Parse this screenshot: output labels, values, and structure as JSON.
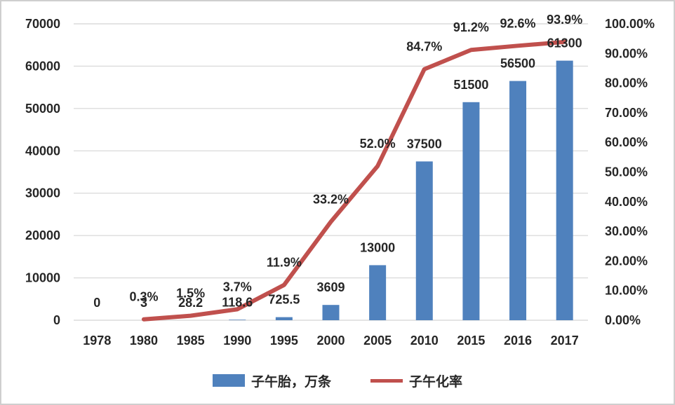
{
  "chart_data": {
    "type": "combo",
    "title": "",
    "categories": [
      "1978",
      "1980",
      "1985",
      "1990",
      "1995",
      "2000",
      "2005",
      "2010",
      "2015",
      "2016",
      "2017"
    ],
    "series": [
      {
        "name": "子午胎，万条",
        "type": "bar",
        "axis": "left",
        "color": "#4F81BD",
        "values": [
          0,
          3,
          28.2,
          118.6,
          725.5,
          3609,
          13000,
          37500,
          51500,
          56500,
          61300
        ],
        "data_labels": [
          "0",
          "3",
          "28.2",
          "118.6",
          "725.5",
          "3609",
          "13000",
          "37500",
          "51500",
          "56500",
          "61300"
        ]
      },
      {
        "name": "子午化率",
        "type": "line",
        "axis": "right",
        "color": "#C0504D",
        "values": [
          null,
          0.3,
          1.5,
          3.7,
          11.9,
          33.2,
          52.0,
          84.7,
          91.2,
          92.6,
          93.9
        ],
        "data_labels": [
          null,
          "0.3%",
          "1.5%",
          "3.7%",
          "11.9%",
          "33.2%",
          "52.0%",
          "84.7%",
          "91.2%",
          "92.6%",
          "93.9%"
        ]
      }
    ],
    "left_axis": {
      "min": 0,
      "max": 70000,
      "step": 10000,
      "ticks": [
        "70000",
        "60000",
        "50000",
        "40000",
        "30000",
        "20000",
        "10000",
        "0"
      ]
    },
    "right_axis": {
      "min": 0,
      "max": 100,
      "step": 10,
      "ticks": [
        "100.00%",
        "90.00%",
        "80.00%",
        "70.00%",
        "60.00%",
        "50.00%",
        "40.00%",
        "30.00%",
        "20.00%",
        "10.00%",
        "0.00%"
      ]
    },
    "grid": true,
    "legend_position": "bottom",
    "gridline_color": "#DCDCDC",
    "text_color": "#262626"
  }
}
